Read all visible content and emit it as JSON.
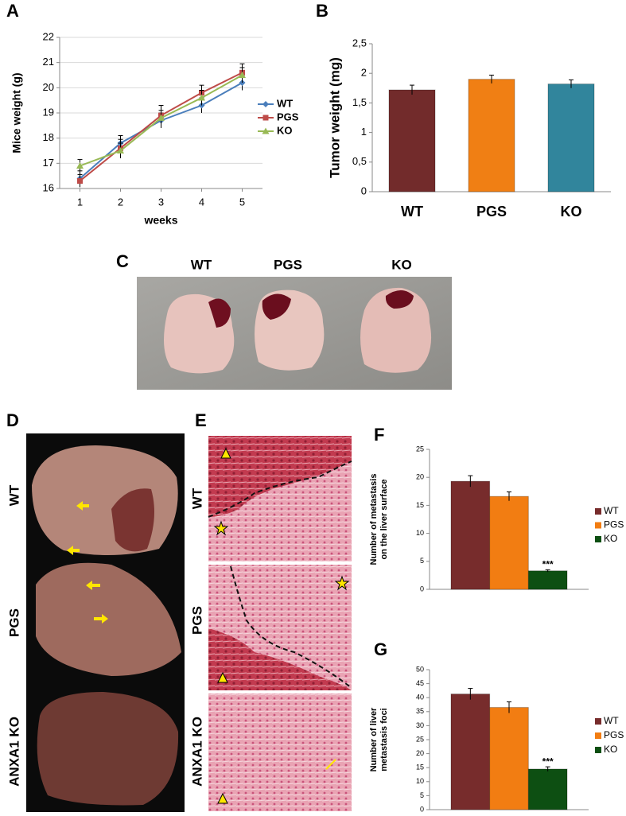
{
  "chart_data": [
    {
      "type": "line",
      "panel": "A",
      "ylabel": [
        "Mice weight (g)"
      ],
      "xlabel": "weeks",
      "x": [
        1,
        2,
        3,
        4,
        5
      ],
      "xlim": [
        0.5,
        5.5
      ],
      "xticks": [
        1,
        2,
        3,
        4,
        5
      ],
      "ylim": [
        16,
        22
      ],
      "yticks": [
        16,
        17,
        18,
        19,
        20,
        21,
        22
      ],
      "grid": true,
      "legend": "right",
      "series": [
        {
          "name": "WT",
          "color": "#4a7ebb",
          "marker": "diamond",
          "values": [
            16.4,
            17.8,
            18.7,
            19.3,
            20.2
          ],
          "errors": [
            0.3,
            0.3,
            0.3,
            0.3,
            0.3
          ]
        },
        {
          "name": "PGS",
          "color": "#be4b48",
          "marker": "square",
          "values": [
            16.3,
            17.6,
            18.9,
            19.8,
            20.6
          ],
          "errors": [
            0.25,
            0.35,
            0.4,
            0.3,
            0.35
          ]
        },
        {
          "name": "KO",
          "color": "#98b954",
          "marker": "triangle",
          "values": [
            16.9,
            17.5,
            18.8,
            19.6,
            20.5
          ],
          "errors": [
            0.25,
            0.3,
            0.3,
            0.3,
            0.3
          ]
        }
      ]
    },
    {
      "type": "bar",
      "panel": "B",
      "ylabel": [
        "Tumor weight  (mg)"
      ],
      "categories": [
        "WT",
        "PGS",
        "KO"
      ],
      "values": [
        1.72,
        1.9,
        1.82
      ],
      "errors": [
        0.08,
        0.07,
        0.07
      ],
      "colors": [
        "#722b2b",
        "#f07f14",
        "#31859c"
      ],
      "ylim": [
        0,
        2.5
      ],
      "yticks": [
        0,
        {
          "value": 0.5,
          "label": "0,5"
        },
        1,
        {
          "value": 1.5,
          "label": "1,5"
        },
        2,
        {
          "value": 2.5,
          "label": "2,5"
        }
      ],
      "grid": false
    },
    {
      "type": "bar",
      "panel": "F",
      "ylabel": [
        "Number of metastasis",
        "on the liver surface"
      ],
      "categories": [
        null
      ],
      "legend": "right",
      "series": [
        {
          "name": "WT",
          "color": "#772c2c",
          "values": [
            19.3
          ],
          "errors": [
            1.0
          ]
        },
        {
          "name": "PGS",
          "color": "#f27d12",
          "values": [
            16.6
          ],
          "errors": [
            0.8
          ]
        },
        {
          "name": "KO",
          "color": "#0d4f12",
          "values": [
            3.3
          ],
          "errors": [
            0.2
          ],
          "annotation": "***"
        }
      ],
      "ylim": [
        0,
        25
      ],
      "yticks": [
        0,
        5,
        10,
        15,
        20,
        25
      ],
      "grid": false
    },
    {
      "type": "bar",
      "panel": "G",
      "ylabel": [
        "Number of liver",
        "metastasis foci"
      ],
      "categories": [
        null
      ],
      "legend": "right",
      "series": [
        {
          "name": "WT",
          "color": "#772c2c",
          "values": [
            41.3
          ],
          "errors": [
            2.0
          ]
        },
        {
          "name": "PGS",
          "color": "#f27d12",
          "values": [
            36.5
          ],
          "errors": [
            2.0
          ]
        },
        {
          "name": "KO",
          "color": "#0d4f12",
          "values": [
            14.5
          ],
          "errors": [
            0.8
          ],
          "annotation": "***"
        }
      ],
      "ylim": [
        0,
        50
      ],
      "yticks": [
        0,
        5,
        10,
        15,
        20,
        25,
        30,
        35,
        40,
        45,
        50
      ],
      "grid": false
    }
  ],
  "photos": {
    "C": {
      "panel": "C",
      "labels": [
        "WT",
        "PGS",
        "KO"
      ]
    },
    "D": {
      "panel": "D",
      "labels": [
        "WT",
        "PGS",
        "ANXA1 KO"
      ]
    },
    "E": {
      "panel": "E",
      "labels": [
        "WT",
        "PGS",
        "ANXA1 KO"
      ]
    }
  }
}
